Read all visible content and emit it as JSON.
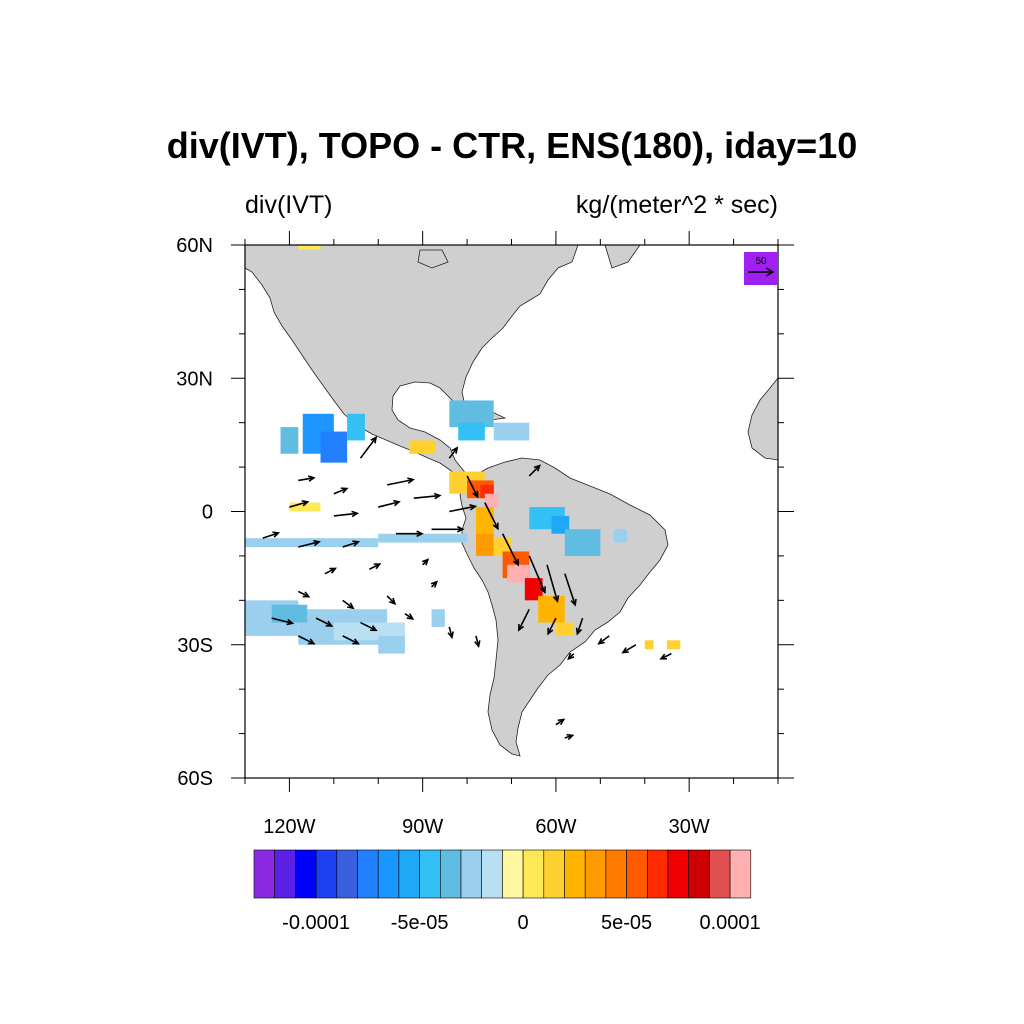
{
  "title": "div(IVT), TOPO - CTR, ENS(180), iday=10",
  "left_subtitle": "div(IVT)",
  "right_subtitle": "kg/(meter^2 * sec)",
  "map": {
    "lon_range": [
      -130,
      -10
    ],
    "lat_range": [
      -60,
      60
    ],
    "lat_ticks": [
      {
        "value": 60,
        "label": "60N"
      },
      {
        "value": 30,
        "label": "30N"
      },
      {
        "value": 0,
        "label": "0"
      },
      {
        "value": -30,
        "label": "30S"
      },
      {
        "value": -60,
        "label": "60S"
      }
    ],
    "lon_ticks": [
      {
        "value": -120,
        "label": "120W"
      },
      {
        "value": -90,
        "label": "90W"
      },
      {
        "value": -60,
        "label": "60W"
      },
      {
        "value": -30,
        "label": "30W"
      }
    ],
    "land_color": "#cfcfcf"
  },
  "reference_vector": {
    "label": "50",
    "color": "#a020f0"
  },
  "colorbar": {
    "colors": [
      "#8a2be2",
      "#5a20e6",
      "#0000ff",
      "#1e40ee",
      "#3a60e0",
      "#2280ff",
      "#1a96ff",
      "#1ea8f5",
      "#35c0f5",
      "#60bce0",
      "#9ad0ee",
      "#b8e0f2",
      "#fff8a0",
      "#ffe858",
      "#ffd030",
      "#ffb400",
      "#ff9a00",
      "#ff7c00",
      "#ff5a00",
      "#ff2a00",
      "#f00000",
      "#cc0000",
      "#e05050",
      "#ffb0b0"
    ],
    "labels": [
      {
        "after_box": 3,
        "text": "-0.0001"
      },
      {
        "after_box": 8,
        "text": "-5e-05"
      },
      {
        "after_box": 13,
        "text": "0"
      },
      {
        "after_box": 18,
        "text": "5e-05"
      },
      {
        "after_box": 23,
        "text": "0.0001"
      }
    ]
  },
  "shading_cells": [
    {
      "lon": -118,
      "lat": 59.0,
      "dlon": 5,
      "dlat": 2,
      "color": "#ffe858"
    },
    {
      "lon": -122,
      "lat": 13,
      "dlon": 4,
      "dlat": 6,
      "color": "#60bce0"
    },
    {
      "lon": -117,
      "lat": 13,
      "dlon": 7,
      "dlat": 9,
      "color": "#1e96ff"
    },
    {
      "lon": -113,
      "lat": 11,
      "dlon": 6,
      "dlat": 7,
      "color": "#2280ff"
    },
    {
      "lon": -107,
      "lat": 16,
      "dlon": 4,
      "dlat": 6,
      "color": "#35c0f5"
    },
    {
      "lon": -93,
      "lat": 13,
      "dlon": 6,
      "dlat": 3,
      "color": "#ffd030"
    },
    {
      "lon": -84,
      "lat": 19,
      "dlon": 10,
      "dlat": 6,
      "color": "#60bce0"
    },
    {
      "lon": -82,
      "lat": 16,
      "dlon": 6,
      "dlat": 4,
      "color": "#35c0f5"
    },
    {
      "lon": -74,
      "lat": 16,
      "dlon": 8,
      "dlat": 4,
      "color": "#9ad0ee"
    },
    {
      "lon": -120,
      "lat": 0,
      "dlon": 7,
      "dlat": 2,
      "color": "#ffe858"
    },
    {
      "lon": -84,
      "lat": 4,
      "dlon": 8,
      "dlat": 5,
      "color": "#ffd030"
    },
    {
      "lon": -80,
      "lat": 3,
      "dlon": 6,
      "dlat": 4,
      "color": "#ff5a00"
    },
    {
      "lon": -77,
      "lat": 3,
      "dlon": 3,
      "dlat": 3,
      "color": "#ff2a00"
    },
    {
      "lon": -76,
      "lat": 1,
      "dlon": 3,
      "dlat": 3,
      "color": "#ffb0b0"
    },
    {
      "lon": -78,
      "lat": -5,
      "dlon": 4,
      "dlat": 6,
      "color": "#ffb400"
    },
    {
      "lon": -78,
      "lat": -10,
      "dlon": 4,
      "dlat": 5,
      "color": "#ff9a00"
    },
    {
      "lon": -74,
      "lat": -10,
      "dlon": 4,
      "dlat": 4,
      "color": "#ffd030"
    },
    {
      "lon": -72,
      "lat": -15,
      "dlon": 6,
      "dlat": 6,
      "color": "#ff5a00"
    },
    {
      "lon": -71,
      "lat": -16,
      "dlon": 5,
      "dlat": 4,
      "color": "#ffb0b0"
    },
    {
      "lon": -67,
      "lat": -20,
      "dlon": 4,
      "dlat": 5,
      "color": "#f00000"
    },
    {
      "lon": -64,
      "lat": -25,
      "dlon": 6,
      "dlat": 6,
      "color": "#ffb400"
    },
    {
      "lon": -60,
      "lat": -28,
      "dlon": 4,
      "dlat": 3,
      "color": "#ffd030"
    },
    {
      "lon": -40,
      "lat": -31,
      "dlon": 2,
      "dlat": 2,
      "color": "#ffd030"
    },
    {
      "lon": -35,
      "lat": -31,
      "dlon": 3,
      "dlat": 2,
      "color": "#ffd030"
    },
    {
      "lon": -66,
      "lat": -4,
      "dlon": 8,
      "dlat": 5,
      "color": "#35c0f5"
    },
    {
      "lon": -61,
      "lat": -5,
      "dlon": 4,
      "dlat": 4,
      "color": "#1ea8f5"
    },
    {
      "lon": -58,
      "lat": -10,
      "dlon": 8,
      "dlat": 6,
      "color": "#60bce0"
    },
    {
      "lon": -47,
      "lat": -7,
      "dlon": 3,
      "dlat": 3,
      "color": "#9ad0ee"
    },
    {
      "lon": -130,
      "lat": -8,
      "dlon": 30,
      "dlat": 2,
      "color": "#9ad0ee"
    },
    {
      "lon": -100,
      "lat": -7,
      "dlon": 20,
      "dlat": 2,
      "color": "#9ad0ee"
    },
    {
      "lon": -130,
      "lat": -28,
      "dlon": 12,
      "dlat": 8,
      "color": "#9ad0ee"
    },
    {
      "lon": -118,
      "lat": -30,
      "dlon": 20,
      "dlat": 8,
      "color": "#9ad0ee"
    },
    {
      "lon": -124,
      "lat": -25,
      "dlon": 8,
      "dlat": 4,
      "color": "#60bce0"
    },
    {
      "lon": -110,
      "lat": -29,
      "dlon": 16,
      "dlat": 4,
      "color": "#b8e0f2"
    },
    {
      "lon": -100,
      "lat": -32,
      "dlon": 6,
      "dlat": 4,
      "color": "#9ad0ee"
    },
    {
      "lon": -88,
      "lat": -26,
      "dlon": 3,
      "dlat": 4,
      "color": "#9ad0ee"
    }
  ],
  "wind_vectors": [
    {
      "lon": -118,
      "lat": 7,
      "u": 6,
      "v": 1
    },
    {
      "lon": -110,
      "lat": 4,
      "u": 5,
      "v": 2
    },
    {
      "lon": -104,
      "lat": 12,
      "u": 6,
      "v": 8
    },
    {
      "lon": -98,
      "lat": 6,
      "u": 10,
      "v": 2
    },
    {
      "lon": -92,
      "lat": 3,
      "u": 10,
      "v": 1
    },
    {
      "lon": -100,
      "lat": 1,
      "u": 8,
      "v": 2
    },
    {
      "lon": -110,
      "lat": -1,
      "u": 9,
      "v": 1
    },
    {
      "lon": -120,
      "lat": 1,
      "u": 7,
      "v": 2
    },
    {
      "lon": -84,
      "lat": 0,
      "u": 10,
      "v": 2
    },
    {
      "lon": -88,
      "lat": -4,
      "u": 12,
      "v": 0
    },
    {
      "lon": -96,
      "lat": -5,
      "u": 10,
      "v": 0
    },
    {
      "lon": -108,
      "lat": -8,
      "u": 6,
      "v": 2
    },
    {
      "lon": -118,
      "lat": -8,
      "u": 8,
      "v": 2
    },
    {
      "lon": -126,
      "lat": -6,
      "u": 6,
      "v": 2
    },
    {
      "lon": -112,
      "lat": -14,
      "u": 4,
      "v": 2
    },
    {
      "lon": -102,
      "lat": -13,
      "u": 4,
      "v": 2
    },
    {
      "lon": -90,
      "lat": -12,
      "u": 2,
      "v": 2
    },
    {
      "lon": -118,
      "lat": -18,
      "u": 4,
      "v": -2
    },
    {
      "lon": -108,
      "lat": -20,
      "u": 4,
      "v": -3
    },
    {
      "lon": -98,
      "lat": -19,
      "u": 3,
      "v": -3
    },
    {
      "lon": -88,
      "lat": -17,
      "u": 2,
      "v": 2
    },
    {
      "lon": -124,
      "lat": -24,
      "u": 8,
      "v": -2
    },
    {
      "lon": -114,
      "lat": -24,
      "u": 6,
      "v": -3
    },
    {
      "lon": -104,
      "lat": -25,
      "u": 6,
      "v": -3
    },
    {
      "lon": -94,
      "lat": -23,
      "u": 3,
      "v": -2
    },
    {
      "lon": -84,
      "lat": -26,
      "u": 1,
      "v": -4
    },
    {
      "lon": -78,
      "lat": -28,
      "u": 1,
      "v": -4
    },
    {
      "lon": -118,
      "lat": -28,
      "u": 6,
      "v": -3
    },
    {
      "lon": -108,
      "lat": -28,
      "u": 6,
      "v": -3
    },
    {
      "lon": -80,
      "lat": 8,
      "u": 4,
      "v": -8
    },
    {
      "lon": -76,
      "lat": 2,
      "u": 5,
      "v": -10
    },
    {
      "lon": -72,
      "lat": -5,
      "u": 6,
      "v": -12
    },
    {
      "lon": -66,
      "lat": -10,
      "u": 6,
      "v": -14
    },
    {
      "lon": -62,
      "lat": -12,
      "u": 4,
      "v": -14
    },
    {
      "lon": -58,
      "lat": -14,
      "u": 4,
      "v": -12
    },
    {
      "lon": -66,
      "lat": -22,
      "u": -4,
      "v": -8
    },
    {
      "lon": -60,
      "lat": -24,
      "u": -3,
      "v": -6
    },
    {
      "lon": -54,
      "lat": -24,
      "u": -2,
      "v": -6
    },
    {
      "lon": -48,
      "lat": -28,
      "u": -4,
      "v": -3
    },
    {
      "lon": -42,
      "lat": -30,
      "u": -5,
      "v": -3
    },
    {
      "lon": -34,
      "lat": -32,
      "u": -4,
      "v": -2
    },
    {
      "lon": -56,
      "lat": -32,
      "u": -2,
      "v": -2
    },
    {
      "lon": -60,
      "lat": -48,
      "u": 3,
      "v": 2
    },
    {
      "lon": -58,
      "lat": -51,
      "u": 3,
      "v": 1
    },
    {
      "lon": -66,
      "lat": 8,
      "u": 4,
      "v": 4
    },
    {
      "lon": -84,
      "lat": 12,
      "u": 3,
      "v": 4
    }
  ]
}
